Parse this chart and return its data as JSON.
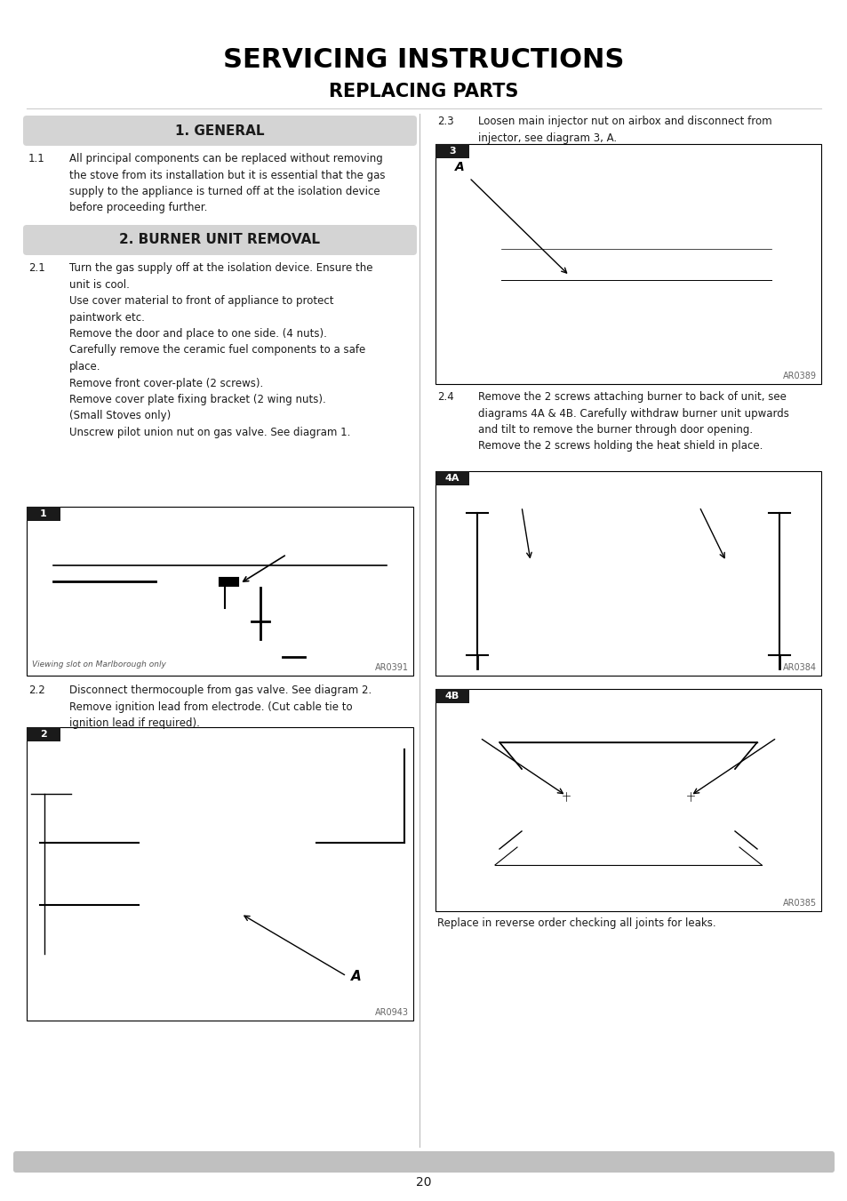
{
  "title1": "SERVICING INSTRUCTIONS",
  "title2": "REPLACING PARTS",
  "page_number": "20",
  "bg_color": "#ffffff",
  "section_bg": "#d4d4d4",
  "section1_title": "1. GENERAL",
  "section2_title": "2. BURNER UNIT REMOVAL",
  "text_color": "#1a1a1a",
  "section_text_color": "#1a1a1a",
  "para_1_1": "All principal components can be replaced without removing\nthe stove from its installation but it is essential that the gas\nsupply to the appliance is turned off at the isolation device\nbefore proceeding further.",
  "para_2_1_lines": "Turn the gas supply off at the isolation device. Ensure the\nunit is cool.\nUse cover material to front of appliance to protect\npaintwork etc.\nRemove the door and place to one side. (4 nuts).\nCarefully remove the ceramic fuel components to a safe\nplace.\nRemove front cover-plate (2 screws).\nRemove cover plate fixing bracket (2 wing nuts).\n(Small Stoves only)\nUnscrew pilot union nut on gas valve. See diagram 1.",
  "para_2_2": "Disconnect thermocouple from gas valve. See diagram 2.\nRemove ignition lead from electrode. (Cut cable tie to\nignition lead if required).",
  "para_2_3": "Loosen main injector nut on airbox and disconnect from\ninjector, see diagram 3, A.",
  "para_2_4": "Remove the 2 screws attaching burner to back of unit, see\ndiagrams 4A & 4B. Carefully withdraw burner unit upwards\nand tilt to remove the burner through door opening.\nRemove the 2 screws holding the heat shield in place.",
  "para_final": "Replace in reverse order checking all joints for leaks.",
  "ref1": "AR0391",
  "ref2": "AR0943",
  "ref3": "AR0389",
  "ref4a": "AR0384",
  "ref4b": "AR0385",
  "viewing_note": "Viewing slot on Marlborough only",
  "footer_bar_color": "#c0c0c0",
  "divider_color": "#bbbbbb",
  "tab_color": "#1a1a1a"
}
